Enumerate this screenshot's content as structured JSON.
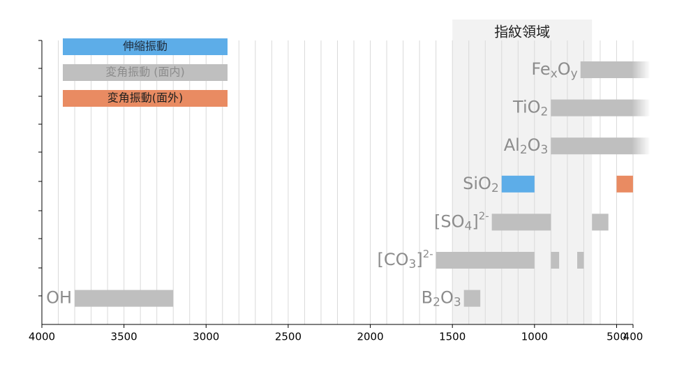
{
  "chart_data": {
    "type": "range_bar",
    "region": {
      "label": "指紋領域",
      "start": 1500,
      "end": 650
    },
    "series": [
      {
        "name": "伸縮振動",
        "color": "#5DADE8",
        "text_color": "#1f2d3d"
      },
      {
        "name": "変角振動 (面内)",
        "color": "#BFBFBF",
        "text_color": "#8c8c8c"
      },
      {
        "name": "変角振動(面外)",
        "color": "#E98B62",
        "text_color": "#1f1f1f"
      }
    ],
    "rows": [
      {
        "entries": [
          {
            "label": [
              {
                "text": "Fe"
              },
              {
                "text": "x",
                "script": "sub"
              },
              {
                "text": "O"
              },
              {
                "text": "y",
                "script": "sub"
              }
            ],
            "bars": [
              {
                "series": 1,
                "start": 720,
                "end": 300
              }
            ]
          }
        ]
      },
      {
        "entries": [
          {
            "label": [
              {
                "text": "TiO"
              },
              {
                "text": "2",
                "script": "sub"
              }
            ],
            "bars": [
              {
                "series": 1,
                "start": 900,
                "end": 300
              }
            ]
          }
        ]
      },
      {
        "entries": [
          {
            "label": [
              {
                "text": "Al"
              },
              {
                "text": "2",
                "script": "sub"
              },
              {
                "text": "O"
              },
              {
                "text": "3",
                "script": "sub"
              }
            ],
            "bars": [
              {
                "series": 1,
                "start": 900,
                "end": 300
              }
            ]
          }
        ]
      },
      {
        "entries": [
          {
            "label": [
              {
                "text": "SiO"
              },
              {
                "text": "2",
                "script": "sub"
              }
            ],
            "bars": [
              {
                "series": 0,
                "start": 1200,
                "end": 1000
              },
              {
                "series": 2,
                "start": 500,
                "end": 400
              }
            ]
          }
        ]
      },
      {
        "entries": [
          {
            "label": [
              {
                "text": "[SO"
              },
              {
                "text": "4",
                "script": "sub"
              },
              {
                "text": "]"
              },
              {
                "text": "2-",
                "script": "super"
              }
            ],
            "bars": [
              {
                "series": 1,
                "start": 1260,
                "end": 900
              },
              {
                "series": 1,
                "start": 650,
                "end": 550
              }
            ]
          }
        ]
      },
      {
        "entries": [
          {
            "label": [
              {
                "text": "[CO"
              },
              {
                "text": "3",
                "script": "sub"
              },
              {
                "text": "]"
              },
              {
                "text": "2-",
                "script": "super"
              }
            ],
            "bars": [
              {
                "series": 1,
                "start": 1600,
                "end": 1000
              },
              {
                "series": 1,
                "start": 900,
                "end": 850
              },
              {
                "series": 1,
                "start": 740,
                "end": 700
              }
            ]
          }
        ]
      },
      {
        "entries": [
          {
            "label": [
              {
                "text": "OH"
              }
            ],
            "bars": [
              {
                "series": 1,
                "start": 3800,
                "end": 3200
              }
            ]
          },
          {
            "label": [
              {
                "text": "B"
              },
              {
                "text": "2",
                "script": "sub"
              },
              {
                "text": "O"
              },
              {
                "text": "3",
                "script": "sub"
              }
            ],
            "bars": [
              {
                "series": 1,
                "start": 1430,
                "end": 1330
              }
            ]
          }
        ]
      }
    ],
    "xlim": [
      4000,
      400
    ],
    "xticks": [
      4000,
      3500,
      3000,
      2500,
      2000,
      1500,
      1000,
      500,
      400
    ],
    "grid_step": 100
  }
}
